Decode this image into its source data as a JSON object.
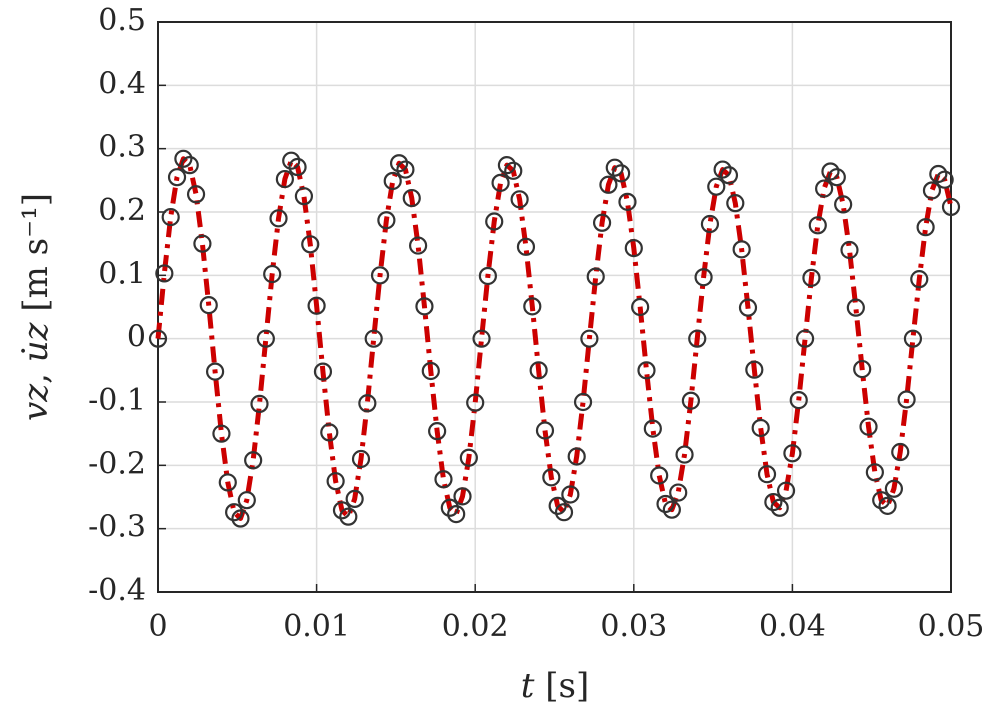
{
  "chart_data": {
    "type": "line",
    "xlabel": "𝑡 [s]",
    "ylabel": "𝑣𝑧, 𝑢̇𝑧 [m s⁻¹]",
    "xlim": [
      0,
      0.05
    ],
    "xticks": [
      0,
      0.01,
      0.02,
      0.03,
      0.04,
      0.05
    ],
    "ylim": [
      -0.4,
      0.5
    ],
    "yticks": [
      -0.4,
      -0.3,
      -0.2,
      -0.1,
      0,
      0.1,
      0.2,
      0.3,
      0.4,
      0.5
    ],
    "grid": true,
    "x": [
      0,
      0.0004,
      0.0008,
      0.0012,
      0.0016,
      0.002,
      0.0024,
      0.0028,
      0.0032,
      0.0036,
      0.004,
      0.0044,
      0.0048,
      0.0052,
      0.0056,
      0.006,
      0.0064,
      0.0068,
      0.0072,
      0.0076,
      0.008,
      0.0084,
      0.0088,
      0.0092,
      0.0096,
      0.01,
      0.0104,
      0.0108,
      0.0112,
      0.0116,
      0.012,
      0.0124,
      0.0128,
      0.0132,
      0.0136,
      0.014,
      0.0144,
      0.0148,
      0.0152,
      0.0156,
      0.016,
      0.0164,
      0.0168,
      0.0172,
      0.0176,
      0.018,
      0.0184,
      0.0188,
      0.0192,
      0.0196,
      0.02,
      0.0204,
      0.0208,
      0.0212,
      0.0216,
      0.022,
      0.0224,
      0.0228,
      0.0232,
      0.0236,
      0.024,
      0.0244,
      0.0248,
      0.0252,
      0.0256,
      0.026,
      0.0264,
      0.0268,
      0.0272,
      0.0276,
      0.028,
      0.0284,
      0.0288,
      0.0292,
      0.0296,
      0.03,
      0.0304,
      0.0308,
      0.0312,
      0.0316,
      0.032,
      0.0324,
      0.0328,
      0.0332,
      0.0336,
      0.034,
      0.0344,
      0.0348,
      0.0352,
      0.0356,
      0.036,
      0.0364,
      0.0368,
      0.0372,
      0.0376,
      0.038,
      0.0384,
      0.0388,
      0.0392,
      0.0396,
      0.04,
      0.0404,
      0.0408,
      0.0412,
      0.0416,
      0.042,
      0.0424,
      0.0428,
      0.0432,
      0.0436,
      0.044,
      0.0444,
      0.0448,
      0.0452,
      0.0456,
      0.046,
      0.0464,
      0.0468,
      0.0472,
      0.0476,
      0.048,
      0.0484,
      0.0488,
      0.0492,
      0.0496,
      0.05
    ],
    "series": [
      {
        "style": "dash-dot",
        "color": "#cc0000",
        "values": [
          0,
          0.103,
          0.192,
          0.255,
          0.284,
          0.274,
          0.228,
          0.15,
          0.053,
          -0.052,
          -0.15,
          -0.227,
          -0.274,
          -0.284,
          -0.255,
          -0.192,
          -0.103,
          0,
          0.102,
          0.19,
          0.252,
          0.281,
          0.271,
          0.225,
          0.149,
          0.052,
          -0.052,
          -0.148,
          -0.225,
          -0.271,
          -0.281,
          -0.253,
          -0.19,
          -0.102,
          0,
          0.1,
          0.187,
          0.249,
          0.277,
          0.267,
          0.222,
          0.147,
          0.051,
          -0.051,
          -0.146,
          -0.222,
          -0.267,
          -0.277,
          -0.249,
          -0.188,
          -0.101,
          0,
          0.099,
          0.185,
          0.246,
          0.274,
          0.265,
          0.22,
          0.145,
          0.051,
          -0.05,
          -0.145,
          -0.219,
          -0.264,
          -0.274,
          -0.246,
          -0.186,
          -0.1,
          0,
          0.098,
          0.183,
          0.243,
          0.27,
          0.261,
          0.216,
          0.143,
          0.05,
          -0.05,
          -0.142,
          -0.216,
          -0.261,
          -0.27,
          -0.243,
          -0.183,
          -0.098,
          0,
          0.097,
          0.181,
          0.24,
          0.267,
          0.258,
          0.214,
          0.141,
          0.049,
          -0.049,
          -0.141,
          -0.214,
          -0.258,
          -0.267,
          -0.24,
          -0.181,
          -0.097,
          0,
          0.096,
          0.179,
          0.237,
          0.264,
          0.255,
          0.212,
          0.14,
          0.049,
          -0.048,
          -0.139,
          -0.211,
          -0.255,
          -0.264,
          -0.237,
          -0.179,
          -0.096,
          0,
          0.094,
          0.176,
          0.234,
          0.26,
          0.251,
          0.208
        ]
      },
      {
        "style": "circles",
        "color": "#333333",
        "values": [
          0,
          0.103,
          0.192,
          0.255,
          0.284,
          0.274,
          0.228,
          0.15,
          0.053,
          -0.052,
          -0.15,
          -0.227,
          -0.274,
          -0.284,
          -0.255,
          -0.192,
          -0.103,
          0,
          0.102,
          0.19,
          0.252,
          0.281,
          0.271,
          0.225,
          0.149,
          0.052,
          -0.052,
          -0.148,
          -0.225,
          -0.271,
          -0.281,
          -0.253,
          -0.19,
          -0.102,
          0,
          0.1,
          0.187,
          0.249,
          0.277,
          0.267,
          0.222,
          0.147,
          0.051,
          -0.051,
          -0.146,
          -0.222,
          -0.267,
          -0.277,
          -0.249,
          -0.188,
          -0.101,
          0,
          0.099,
          0.185,
          0.246,
          0.274,
          0.265,
          0.22,
          0.145,
          0.051,
          -0.05,
          -0.145,
          -0.219,
          -0.264,
          -0.274,
          -0.246,
          -0.186,
          -0.1,
          0,
          0.098,
          0.183,
          0.243,
          0.27,
          0.261,
          0.216,
          0.143,
          0.05,
          -0.05,
          -0.142,
          -0.216,
          -0.261,
          -0.27,
          -0.243,
          -0.183,
          -0.098,
          0,
          0.097,
          0.181,
          0.24,
          0.267,
          0.258,
          0.214,
          0.141,
          0.049,
          -0.049,
          -0.141,
          -0.214,
          -0.258,
          -0.267,
          -0.24,
          -0.181,
          -0.097,
          0,
          0.096,
          0.179,
          0.237,
          0.264,
          0.255,
          0.212,
          0.14,
          0.049,
          -0.048,
          -0.139,
          -0.211,
          -0.255,
          -0.264,
          -0.237,
          -0.179,
          -0.096,
          0,
          0.094,
          0.176,
          0.234,
          0.26,
          0.251,
          0.208
        ]
      }
    ]
  }
}
